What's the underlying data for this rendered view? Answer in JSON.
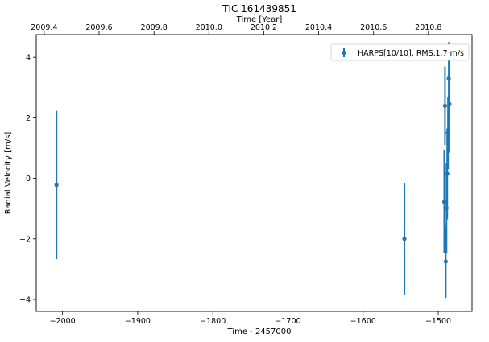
{
  "chart_data": {
    "type": "scatter",
    "title": "TIC 161439851",
    "xlabel": "Time - 2457000",
    "ylabel": "Radial Velocity [m/s]",
    "top_xlabel": "Time [Year]",
    "xlim": [
      -2035,
      -1455
    ],
    "ylim": [
      -4.4,
      4.75
    ],
    "xticks": [
      -2000,
      -1900,
      -1800,
      -1700,
      -1600,
      -1500
    ],
    "yticks": [
      -4,
      -2,
      0,
      2,
      4
    ],
    "top_ticks": [
      "2009.4",
      "2009.6",
      "2009.8",
      "2010.0",
      "2010.2",
      "2010.4",
      "2010.6",
      "2010.8"
    ],
    "top_tick_positions": [
      -2024.4,
      -1951.4,
      -1878.3,
      -1805.3,
      -1732.2,
      -1659.2,
      -1586.1,
      -1513.1
    ],
    "grid": false,
    "legend_position": "top-right",
    "series": [
      {
        "name": "HARPS[10/10], RMS:",
        "rms": "1.7 m/s",
        "color": "#1f77b4",
        "points": [
          {
            "x": -2008,
            "y": -0.22,
            "err": 2.45
          },
          {
            "x": -1545,
            "y": -2.0,
            "err": 1.85
          },
          {
            "x": -1492,
            "y": -0.78,
            "err": 1.7
          },
          {
            "x": -1491,
            "y": 2.4,
            "err": 1.3
          },
          {
            "x": -1490,
            "y": -2.75,
            "err": 1.2
          },
          {
            "x": -1489,
            "y": -0.98,
            "err": 1.5
          },
          {
            "x": -1488,
            "y": 0.15,
            "err": 1.5
          },
          {
            "x": -1487,
            "y": 1.5,
            "err": 1.2
          },
          {
            "x": -1486,
            "y": 3.3,
            "err": 1.2
          },
          {
            "x": -1485,
            "y": 2.45,
            "err": 1.6
          }
        ]
      }
    ]
  }
}
